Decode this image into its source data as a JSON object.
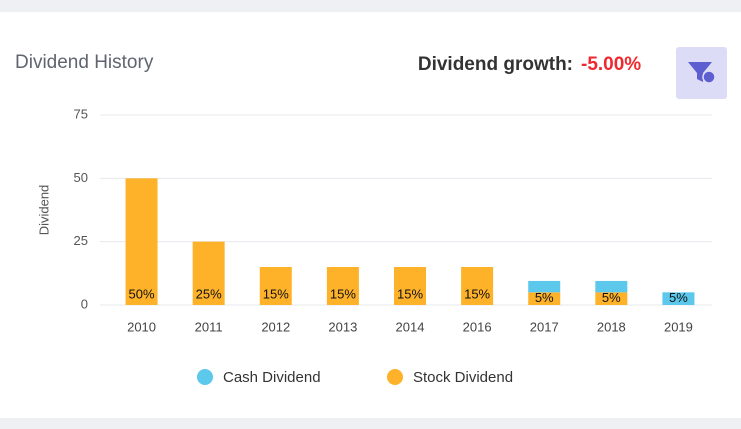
{
  "chart_data": {
    "type": "bar",
    "stacked": true,
    "title": "Dividend History",
    "growth_label": "Dividend growth:",
    "growth_value": "-5.00%",
    "ylabel": "Dividend",
    "categories": [
      "2010",
      "2011",
      "2012",
      "2013",
      "2014",
      "2016",
      "2017",
      "2018",
      "2019"
    ],
    "series": [
      {
        "name": "Stock Dividend",
        "color": "#fdb22a",
        "values": [
          50,
          25,
          15,
          15,
          15,
          15,
          5,
          5,
          0
        ],
        "value_labels": [
          "50%",
          "25%",
          "15%",
          "15%",
          "15%",
          "15%",
          "5%",
          "5%",
          null
        ]
      },
      {
        "name": "Cash Dividend",
        "color": "#5bc8ec",
        "values": [
          0,
          0,
          0,
          0,
          0,
          0,
          4.5,
          4.5,
          5
        ],
        "value_labels": [
          null,
          null,
          null,
          null,
          null,
          null,
          null,
          null,
          "5%"
        ]
      }
    ],
    "ylim": [
      0,
      75
    ],
    "yticks": [
      0,
      25,
      50,
      75
    ],
    "grid": true
  }
}
